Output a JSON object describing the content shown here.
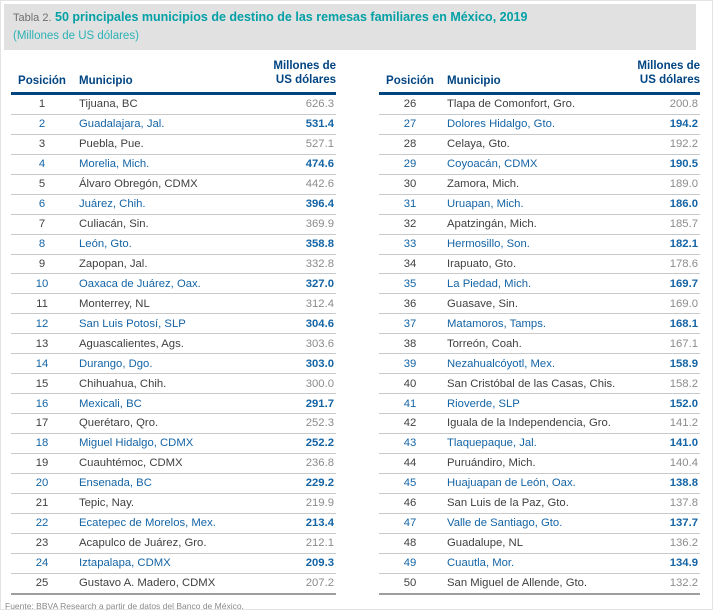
{
  "header": {
    "table_label": "Tabla 2.",
    "title": "50 principales municipios de destino de las remesas familiares en México, 2019",
    "subtitle": "(Millones de US dólares)"
  },
  "columns": {
    "position": "Posición",
    "municipality": "Municipio",
    "value": "Millones de US dólares"
  },
  "chart_data": {
    "type": "table",
    "title": "50 principales municipios de destino de las remesas familiares en México, 2019",
    "units": "Millones de US dólares",
    "columns": [
      "Posición",
      "Municipio",
      "Millones de US dólares"
    ],
    "left_rows": [
      [
        1,
        "Tijuana, BC",
        "626.3"
      ],
      [
        2,
        "Guadalajara, Jal.",
        "531.4"
      ],
      [
        3,
        "Puebla, Pue.",
        "527.1"
      ],
      [
        4,
        "Morelia, Mich.",
        "474.6"
      ],
      [
        5,
        "Álvaro Obregón, CDMX",
        "442.6"
      ],
      [
        6,
        "Juárez, Chih.",
        "396.4"
      ],
      [
        7,
        "Culiacán, Sin.",
        "369.9"
      ],
      [
        8,
        "León, Gto.",
        "358.8"
      ],
      [
        9,
        "Zapopan, Jal.",
        "332.8"
      ],
      [
        10,
        "Oaxaca de Juárez, Oax.",
        "327.0"
      ],
      [
        11,
        "Monterrey, NL",
        "312.4"
      ],
      [
        12,
        "San Luis Potosí, SLP",
        "304.6"
      ],
      [
        13,
        "Aguascalientes, Ags.",
        "303.6"
      ],
      [
        14,
        "Durango, Dgo.",
        "303.0"
      ],
      [
        15,
        "Chihuahua, Chih.",
        "300.0"
      ],
      [
        16,
        "Mexicali, BC",
        "291.7"
      ],
      [
        17,
        "Querétaro, Qro.",
        "252.3"
      ],
      [
        18,
        "Miguel Hidalgo, CDMX",
        "252.2"
      ],
      [
        19,
        "Cuauhtémoc, CDMX",
        "236.8"
      ],
      [
        20,
        "Ensenada, BC",
        "229.2"
      ],
      [
        21,
        "Tepic, Nay.",
        "219.9"
      ],
      [
        22,
        "Ecatepec de Morelos, Mex.",
        "213.4"
      ],
      [
        23,
        "Acapulco de Juárez, Gro.",
        "212.1"
      ],
      [
        24,
        "Iztapalapa, CDMX",
        "209.3"
      ],
      [
        25,
        "Gustavo A. Madero, CDMX",
        "207.2"
      ]
    ],
    "right_rows": [
      [
        26,
        "Tlapa de Comonfort, Gro.",
        "200.8"
      ],
      [
        27,
        "Dolores Hidalgo, Gto.",
        "194.2"
      ],
      [
        28,
        "Celaya, Gto.",
        "192.2"
      ],
      [
        29,
        "Coyoacán, CDMX",
        "190.5"
      ],
      [
        30,
        "Zamora, Mich.",
        "189.0"
      ],
      [
        31,
        "Uruapan, Mich.",
        "186.0"
      ],
      [
        32,
        "Apatzingán, Mich.",
        "185.7"
      ],
      [
        33,
        "Hermosillo, Son.",
        "182.1"
      ],
      [
        34,
        "Irapuato, Gto.",
        "178.6"
      ],
      [
        35,
        "La Piedad, Mich.",
        "169.7"
      ],
      [
        36,
        "Guasave, Sin.",
        "169.0"
      ],
      [
        37,
        "Matamoros, Tamps.",
        "168.1"
      ],
      [
        38,
        "Torreón, Coah.",
        "167.1"
      ],
      [
        39,
        "Nezahualcóyotl, Mex.",
        "158.9"
      ],
      [
        40,
        "San Cristóbal de las Casas, Chis.",
        "158.2"
      ],
      [
        41,
        "Rioverde, SLP",
        "152.0"
      ],
      [
        42,
        "Iguala de la Independencia, Gro.",
        "141.2"
      ],
      [
        43,
        "Tlaquepaque, Jal.",
        "141.0"
      ],
      [
        44,
        "Puruándiro, Mich.",
        "140.4"
      ],
      [
        45,
        "Huajuapan de León, Oax.",
        "138.8"
      ],
      [
        46,
        "San Luis de la Paz, Gto.",
        "137.8"
      ],
      [
        47,
        "Valle de Santiago, Gto.",
        "137.7"
      ],
      [
        48,
        "Guadalupe, NL",
        "136.2"
      ],
      [
        49,
        "Cuautla, Mor.",
        "134.9"
      ],
      [
        50,
        "San Miguel de Allende, Gto.",
        "132.2"
      ]
    ]
  },
  "footer": {
    "source": "Fuente: BBVA Research a partir de datos del Banco de México."
  },
  "colors": {
    "navy_header": "#004481",
    "row_blue": "#1464a5",
    "title_teal": "#03a0a5",
    "subtitle_teal": "#2db2b5",
    "band_background": "#e1e1e1",
    "row_dark_text": "#404040",
    "row_value_grey": "#8c8c8c",
    "divider_grey": "#c9c9c9"
  }
}
